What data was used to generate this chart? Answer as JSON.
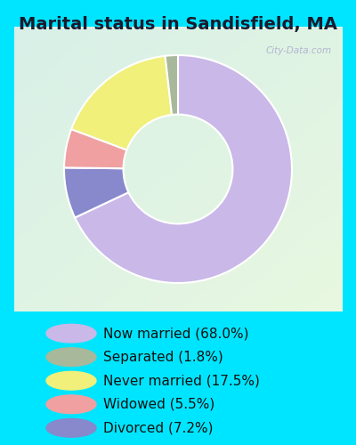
{
  "title": "Marital status in Sandisfield, MA",
  "slices": [
    68.0,
    7.2,
    5.5,
    17.5,
    1.8
  ],
  "labels": [
    "Now married (68.0%)",
    "Separated (1.8%)",
    "Never married (17.5%)",
    "Widowed (5.5%)",
    "Divorced (7.2%)"
  ],
  "legend_colors": [
    "#c9b8e8",
    "#a8b89a",
    "#f0f07a",
    "#f0a0a0",
    "#8888cc"
  ],
  "pie_colors": [
    "#c9b8e8",
    "#8888cc",
    "#f0a0a0",
    "#f0f07a",
    "#a8b89a"
  ],
  "bg_color_topleft": "#d8f0e8",
  "bg_color_bottomright": "#e8f8e0",
  "outer_bg": "#00e5ff",
  "title_fontsize": 14,
  "legend_fontsize": 11,
  "watermark": "City-Data.com",
  "start_angle": 90,
  "donut_width": 0.52
}
